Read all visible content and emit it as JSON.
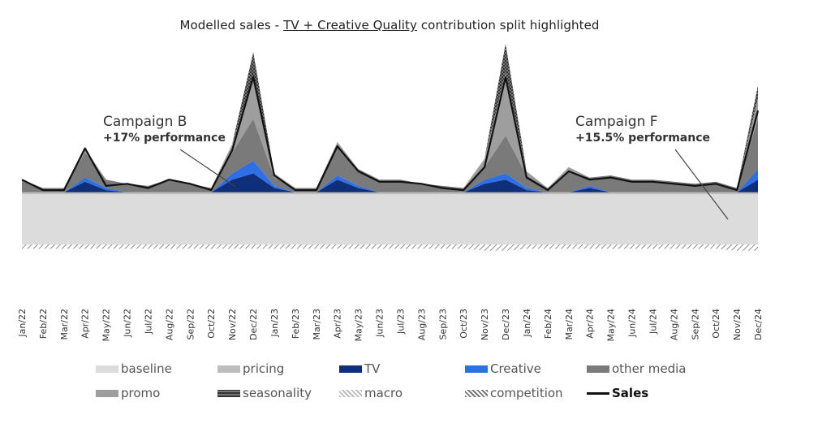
{
  "title": {
    "prefix": "Modelled sales - ",
    "highlight": "TV + Creative Quality",
    "suffix": " contribution split highlighted"
  },
  "annotations": [
    {
      "name": "Campaign B",
      "perf": "+17% performance"
    },
    {
      "name": "Campaign F",
      "perf": "+15.5% performance"
    }
  ],
  "legend": [
    {
      "label": "baseline",
      "color": "#dcdcdc",
      "style": "solid"
    },
    {
      "label": "pricing",
      "color": "#bdbdbd",
      "style": "solid"
    },
    {
      "label": "TV",
      "color": "#0f2f7a",
      "style": "solid"
    },
    {
      "label": "Creative",
      "color": "#2f6fe6",
      "style": "solid"
    },
    {
      "label": "other media",
      "color": "#7a7a7a",
      "style": "solid"
    },
    {
      "label": "promo",
      "color": "#9e9e9e",
      "style": "solid"
    },
    {
      "label": "seasonality",
      "color": "#555555",
      "style": "checker"
    },
    {
      "label": "macro",
      "color": "#bdbdbd",
      "style": "hatch"
    },
    {
      "label": "competition",
      "color": "#777777",
      "style": "hatch"
    },
    {
      "label": "Sales",
      "color": "#111111",
      "style": "line"
    }
  ],
  "chart_data": {
    "type": "area",
    "title": "Modelled sales - TV + Creative Quality contribution split highlighted",
    "xlabel": "",
    "ylabel": "",
    "x_ticks": [
      "Jan/22",
      "Feb/22",
      "Mar/22",
      "Apr/22",
      "May/22",
      "Jun/22",
      "Jul/22",
      "Aug/22",
      "Sep/22",
      "Oct/22",
      "Nov/22",
      "Dec/22",
      "Jan/23",
      "Feb/23",
      "Mar/23",
      "Apr/23",
      "May/23",
      "Jun/23",
      "Jul/23",
      "Aug/23",
      "Sep/23",
      "Oct/23",
      "Nov/23",
      "Dec/23",
      "Jan/24",
      "Feb/24",
      "Mar/24",
      "Apr/24",
      "May/24",
      "Jun/24",
      "Jul/24",
      "Aug/24",
      "Sep/24",
      "Oct/24",
      "Nov/24",
      "Dec/24"
    ],
    "ylim": [
      -1.3,
      4.0
    ],
    "grid": false,
    "legend_position": "bottom",
    "stack_order": [
      "baseline",
      "pricing",
      "TV",
      "Creative",
      "other media",
      "promo",
      "seasonality"
    ],
    "series": [
      {
        "name": "baseline",
        "values": [
          1.2,
          1.2,
          1.2,
          1.2,
          1.2,
          1.2,
          1.2,
          1.2,
          1.2,
          1.2,
          1.2,
          1.2,
          1.2,
          1.2,
          1.2,
          1.2,
          1.2,
          1.2,
          1.2,
          1.2,
          1.2,
          1.2,
          1.2,
          1.2,
          1.2,
          1.2,
          1.2,
          1.2,
          1.2,
          1.2,
          1.2,
          1.2,
          1.2,
          1.2,
          1.2,
          1.2
        ]
      },
      {
        "name": "pricing",
        "values": [
          0.05,
          0.05,
          0.05,
          0.05,
          0.05,
          0.05,
          0.05,
          0.05,
          0.05,
          0.05,
          0.05,
          0.05,
          0.05,
          0.05,
          0.05,
          0.05,
          0.05,
          0.05,
          0.05,
          0.05,
          0.05,
          0.05,
          0.05,
          0.05,
          0.05,
          0.05,
          0.05,
          0.05,
          0.05,
          0.05,
          0.05,
          0.05,
          0.05,
          0.05,
          0.05,
          0.05
        ]
      },
      {
        "name": "TV",
        "values": [
          0,
          0,
          0,
          0.25,
          0.05,
          0,
          0,
          0,
          0,
          0,
          0.3,
          0.45,
          0.1,
          0,
          0,
          0.3,
          0.1,
          0,
          0,
          0,
          0,
          0,
          0.2,
          0.3,
          0.05,
          0,
          0,
          0.1,
          0,
          0,
          0,
          0,
          0,
          0,
          0,
          0.3
        ]
      },
      {
        "name": "Creative",
        "values": [
          0,
          0,
          0,
          0.1,
          0.05,
          0,
          0,
          0,
          0,
          0,
          0.15,
          0.3,
          0.05,
          0,
          0,
          0.1,
          0.05,
          0,
          0,
          0,
          0,
          0,
          0.1,
          0.15,
          0.05,
          0,
          0,
          0.05,
          0,
          0,
          0,
          0,
          0,
          0,
          0,
          0.25
        ]
      },
      {
        "name": "other media",
        "values": [
          0.3,
          0.1,
          0.1,
          0.6,
          0.2,
          0.2,
          0.15,
          0.3,
          0.2,
          0.1,
          0.5,
          1.0,
          0.2,
          0.1,
          0.1,
          0.7,
          0.4,
          0.3,
          0.3,
          0.2,
          0.15,
          0.1,
          0.3,
          0.9,
          0.3,
          0.1,
          0.5,
          0.2,
          0.4,
          0.3,
          0.3,
          0.25,
          0.2,
          0.25,
          0.1,
          1.2
        ]
      },
      {
        "name": "promo",
        "values": [
          0,
          0,
          0,
          0.1,
          0,
          0,
          0,
          0,
          0,
          0,
          0.2,
          1.0,
          0.1,
          0,
          0,
          0.1,
          0,
          0,
          0,
          0,
          0,
          0,
          0.2,
          1.5,
          0.1,
          0,
          0.1,
          0,
          0,
          0,
          0,
          0,
          0,
          0,
          0,
          0.5
        ]
      },
      {
        "name": "seasonality",
        "values": [
          0,
          0,
          0,
          0,
          0,
          0,
          0,
          0,
          0,
          0,
          0,
          0.6,
          0,
          0,
          0,
          0,
          0,
          0,
          0,
          0,
          0,
          0,
          0,
          0.7,
          0,
          0,
          0,
          0,
          0,
          0,
          0,
          0,
          0,
          0,
          0,
          0.3
        ]
      },
      {
        "name": "macro",
        "values": [
          -0.05,
          -0.05,
          -0.05,
          -0.05,
          -0.05,
          -0.05,
          -0.05,
          -0.05,
          -0.05,
          -0.05,
          -0.05,
          -0.05,
          -0.05,
          -0.05,
          -0.05,
          -0.05,
          -0.05,
          -0.05,
          -0.05,
          -0.05,
          -0.05,
          -0.05,
          -0.05,
          -0.05,
          -0.05,
          -0.05,
          -0.05,
          -0.05,
          -0.05,
          -0.05,
          -0.05,
          -0.05,
          -0.05,
          -0.05,
          -0.05,
          -0.05
        ]
      },
      {
        "name": "competition",
        "values": [
          -0.05,
          -0.05,
          -0.05,
          -0.05,
          -0.05,
          -0.05,
          -0.05,
          -0.05,
          -0.05,
          -0.05,
          -0.05,
          -0.05,
          -0.05,
          -0.05,
          -0.05,
          -0.05,
          -0.05,
          -0.05,
          -0.05,
          -0.05,
          -0.05,
          -0.05,
          -0.1,
          -0.1,
          -0.05,
          -0.05,
          -0.05,
          -0.05,
          -0.05,
          -0.05,
          -0.05,
          -0.05,
          -0.05,
          -0.05,
          -0.1,
          -0.1
        ]
      },
      {
        "name": "Sales",
        "values": [
          1.55,
          1.3,
          1.3,
          2.3,
          1.4,
          1.45,
          1.35,
          1.55,
          1.45,
          1.3,
          2.25,
          4.0,
          1.65,
          1.3,
          1.3,
          2.35,
          1.75,
          1.5,
          1.5,
          1.45,
          1.35,
          1.3,
          1.85,
          4.0,
          1.6,
          1.3,
          1.75,
          1.55,
          1.6,
          1.5,
          1.5,
          1.45,
          1.4,
          1.45,
          1.3,
          3.2
        ]
      }
    ]
  }
}
